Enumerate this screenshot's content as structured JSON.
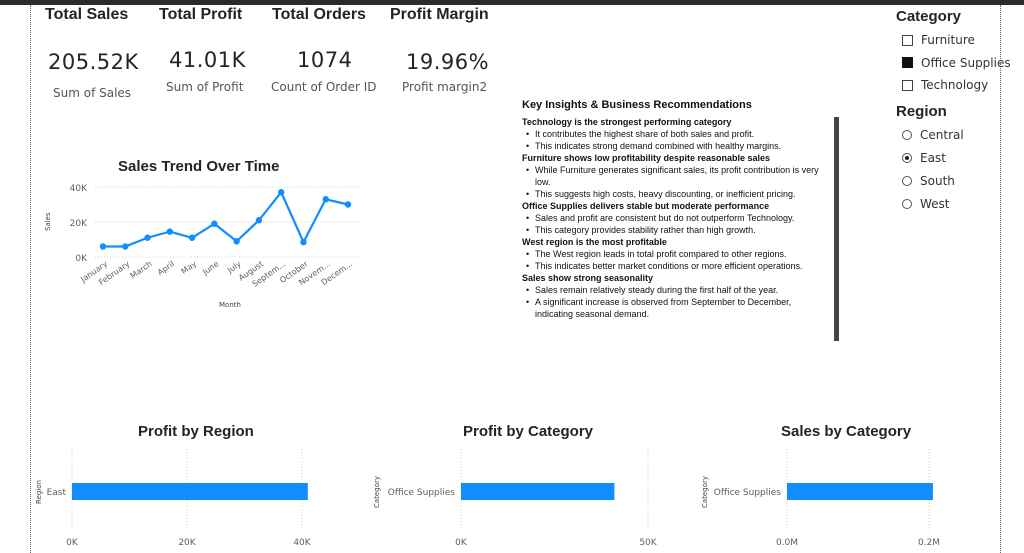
{
  "kpis": [
    {
      "title": "Total Sales",
      "value": "205.52K",
      "label": "Sum of Sales"
    },
    {
      "title": "Total Profit",
      "value": "41.01K",
      "label": "Sum of Profit"
    },
    {
      "title": "Total Orders",
      "value": "1074",
      "label": "Count of Order ID"
    },
    {
      "title": "Profit Margin",
      "value": "19.96%",
      "label": "Profit margin2"
    }
  ],
  "slicers": {
    "category": {
      "title": "Category",
      "items": [
        {
          "label": "Furniture",
          "checked": false
        },
        {
          "label": "Office Supplies",
          "checked": true
        },
        {
          "label": "Technology",
          "checked": false
        }
      ]
    },
    "region": {
      "title": "Region",
      "items": [
        {
          "label": "Central",
          "checked": false
        },
        {
          "label": "East",
          "checked": true
        },
        {
          "label": "South",
          "checked": false
        },
        {
          "label": "West",
          "checked": false
        }
      ]
    }
  },
  "insights": {
    "heading": "Key Insights & Business Recommendations",
    "sections": [
      {
        "title": "Technology is the strongest performing category",
        "bullets": [
          "It contributes the highest share of both sales and profit.",
          "This indicates strong demand combined with healthy margins."
        ]
      },
      {
        "title": "Furniture shows low profitability despite reasonable sales",
        "bullets": [
          "While Furniture generates significant sales, its profit contribution is very low.",
          "This suggests high costs, heavy discounting, or inefficient pricing."
        ]
      },
      {
        "title": "Office Supplies delivers stable but moderate performance",
        "bullets": [
          "Sales and profit are consistent but do not outperform Technology.",
          "This category provides stability rather than high growth."
        ]
      },
      {
        "title": "West region is the most profitable",
        "bullets": [
          "The West region leads in total profit compared to other regions.",
          "This indicates better market conditions or more efficient operations."
        ]
      },
      {
        "title": "Sales show strong seasonality",
        "bullets": [
          "Sales remain relatively steady during the first half of the year.",
          "A significant increase is observed from September to December, indicating seasonal demand."
        ]
      }
    ]
  },
  "colors": {
    "accent": "#118dff",
    "text": "#252423"
  },
  "chart_data": [
    {
      "type": "line",
      "title": "Sales Trend Over Time",
      "xlabel": "Month",
      "ylabel": "Sales",
      "categories": [
        "January",
        "February",
        "March",
        "April",
        "May",
        "June",
        "July",
        "August",
        "Septem...",
        "October",
        "Novem...",
        "Decem..."
      ],
      "values": [
        6000,
        6000,
        11000,
        14500,
        11000,
        19000,
        9000,
        21000,
        37000,
        8500,
        33000,
        30000
      ],
      "yticks": [
        "0K",
        "20K",
        "40K"
      ],
      "ylim": [
        0,
        40000
      ],
      "grid": true
    },
    {
      "type": "bar",
      "title": "Profit by Region",
      "ylabel": "Region",
      "categories": [
        "East"
      ],
      "values": [
        41010
      ],
      "xticks": [
        "0K",
        "20K",
        "40K"
      ],
      "xlim": [
        0,
        40000
      ],
      "grid": true
    },
    {
      "type": "bar",
      "title": "Profit by Category",
      "ylabel": "Category",
      "categories": [
        "Office Supplies"
      ],
      "values": [
        41010
      ],
      "xticks": [
        "0K",
        "50K"
      ],
      "xlim": [
        0,
        50000
      ],
      "grid": true
    },
    {
      "type": "bar",
      "title": "Sales by Category",
      "ylabel": "Category",
      "categories": [
        "Office Supplies"
      ],
      "values": [
        205520
      ],
      "xticks": [
        "0.0M",
        "0.2M"
      ],
      "xlim": [
        0,
        200000
      ],
      "grid": true
    }
  ]
}
